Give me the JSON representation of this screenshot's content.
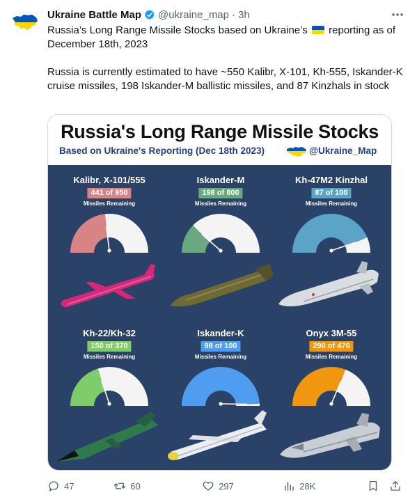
{
  "author": {
    "name": "Ukraine Battle Map",
    "handle": "@ukraine_map",
    "time": "3h"
  },
  "tweet": {
    "line1_before_flag": "Russia’s Long Range Missile Stocks based on Ukraine’s",
    "line1_after_flag": "reporting as of December 18th, 2023",
    "line2": "Russia is currently estimated to have ~550 Kalibr, X-101, Kh-555, Iskander-K cruise missiles, 198 Iskander-M ballistic missiles, and 87 Kinzhals in stock"
  },
  "card": {
    "title": "Russia's Long Range Missile Stocks",
    "subtitle": "Based on Ukraine's Reporting (Dec 18th 2023)",
    "handle": "@Ukraine_Map",
    "remaining_label": "Missiles Remaining",
    "panels": [
      {
        "name": "Kalibr, X-101/555",
        "badge": "441 of 950",
        "remaining": 441,
        "total": 950,
        "color": "#d88484",
        "missile_color": "#d6277b"
      },
      {
        "name": "Iskander-M",
        "badge": "198 of 800",
        "remaining": 198,
        "total": 800,
        "color": "#6aa880",
        "missile_color": "#6e6a32"
      },
      {
        "name": "Kh-47M2 Kinzhal",
        "badge": "87 of 100",
        "remaining": 87,
        "total": 100,
        "color": "#5ba4c8",
        "missile_color": "#d9dde2"
      },
      {
        "name": "Kh-22/Kh-32",
        "badge": "150 of 370",
        "remaining": 150,
        "total": 370,
        "color": "#7fcc6a",
        "missile_color": "#2e7a4c"
      },
      {
        "name": "Iskander-K",
        "badge": "98 of 100",
        "remaining": 98,
        "total": 100,
        "color": "#4f9cf0",
        "missile_color": "#eceff2"
      },
      {
        "name": "Onyx 3M-55",
        "badge": "290 of 470",
        "remaining": 290,
        "total": 470,
        "color": "#f0960f",
        "missile_color": "#c9ced6"
      }
    ]
  },
  "actions": {
    "replies": "47",
    "reposts": "60",
    "likes": "297",
    "views": "28K"
  },
  "colors": {
    "flag_blue": "#0057b7",
    "flag_yellow": "#ffd700",
    "verified": "#1d9bf0",
    "card_bg": "#2b4268"
  }
}
